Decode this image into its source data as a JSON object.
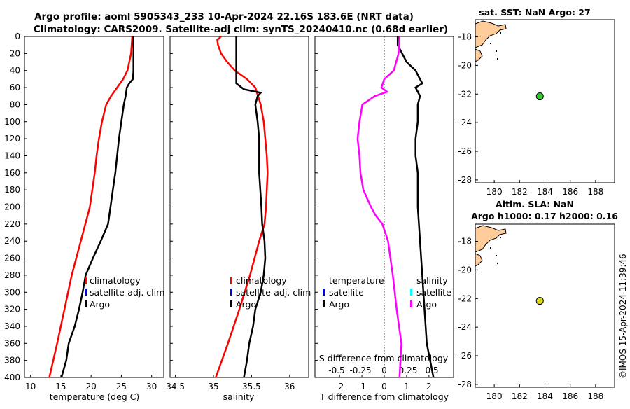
{
  "header": {
    "line1": "Argo profile: aoml 5905343_233 10-Apr-2024 22.16S 183.6E (NRT data)",
    "line2": "Climatology: CARS2009. Satellite-adj clim: synTS_20240410.nc (0.68d earlier)"
  },
  "colors": {
    "climatology": "#ff0000",
    "satellite": "#0000ff",
    "argo": "#000000",
    "sal_satellite": "#00ffff",
    "sal_argo": "#ff00ff",
    "land": "#ffcc99",
    "sst_marker": "#33cc33",
    "sla_marker": "#dddd22"
  },
  "chart_data": [
    {
      "id": "temperature",
      "type": "line",
      "xlabel": "temperature (deg C)",
      "xlim": [
        9,
        32
      ],
      "xticks": [
        10,
        15,
        20,
        25,
        30
      ],
      "ylim": [
        0,
        400
      ],
      "yticks": [
        0,
        20,
        40,
        60,
        80,
        100,
        120,
        140,
        160,
        180,
        200,
        220,
        240,
        260,
        280,
        300,
        320,
        340,
        360,
        380,
        400
      ],
      "legend": [
        "climatology",
        "satellite-adj. clim",
        "Argo"
      ],
      "series": [
        {
          "name": "climatology",
          "depth": [
            0,
            20,
            40,
            50,
            60,
            70,
            80,
            100,
            120,
            140,
            160,
            180,
            200,
            240,
            280,
            320,
            360,
            400
          ],
          "values": [
            26.8,
            26.6,
            26.0,
            25.3,
            24.3,
            23.3,
            22.5,
            21.8,
            21.3,
            20.9,
            20.6,
            20.2,
            19.8,
            18.3,
            16.8,
            15.6,
            14.4,
            13.1
          ]
        },
        {
          "name": "Argo",
          "depth": [
            0,
            20,
            40,
            50,
            55,
            60,
            70,
            80,
            100,
            120,
            140,
            160,
            180,
            200,
            220,
            240,
            260,
            280,
            300,
            320,
            340,
            360,
            380,
            400
          ],
          "values": [
            27.0,
            27.0,
            27.0,
            26.9,
            26.3,
            25.9,
            25.7,
            25.4,
            25.0,
            24.6,
            24.3,
            24.0,
            23.6,
            23.2,
            22.8,
            21.6,
            20.3,
            19.1,
            18.6,
            18.0,
            17.3,
            16.3,
            15.9,
            15.1
          ]
        }
      ]
    },
    {
      "id": "salinity",
      "type": "line",
      "xlabel": "salinity",
      "xlim": [
        34.43,
        36.25
      ],
      "xticks": [
        34.5,
        35,
        35.5,
        36
      ],
      "xtick_labels": [
        "34.5",
        "35",
        "35.5",
        "36"
      ],
      "ylim": [
        0,
        400
      ],
      "legend": [
        "climatology",
        "satellite-adj. clim",
        "Argo"
      ],
      "series": [
        {
          "name": "climatology",
          "depth": [
            0,
            4,
            10,
            20,
            30,
            40,
            50,
            60,
            80,
            100,
            120,
            140,
            160,
            180,
            200,
            220,
            240,
            280,
            320,
            360,
            400
          ],
          "values": [
            35.1,
            35.05,
            35.06,
            35.1,
            35.18,
            35.28,
            35.44,
            35.55,
            35.62,
            35.66,
            35.68,
            35.7,
            35.71,
            35.7,
            35.69,
            35.67,
            35.6,
            35.48,
            35.34,
            35.19,
            35.03
          ]
        },
        {
          "name": "Argo",
          "depth": [
            0,
            40,
            55,
            62,
            66,
            70,
            80,
            100,
            120,
            160,
            200,
            220,
            240,
            260,
            280,
            300,
            320,
            340,
            360,
            380,
            400
          ],
          "values": [
            35.3,
            35.3,
            35.3,
            35.4,
            35.62,
            35.58,
            35.55,
            35.58,
            35.6,
            35.6,
            35.63,
            35.64,
            35.67,
            35.68,
            35.66,
            35.62,
            35.55,
            35.52,
            35.47,
            35.44,
            35.4
          ]
        }
      ]
    },
    {
      "id": "difference",
      "type": "line",
      "xlabel": "T difference from climatology",
      "xlabel2": "S difference from climatology",
      "xlim": [
        -3.1,
        3.1
      ],
      "xticks": [
        -2,
        -1,
        0,
        1,
        2
      ],
      "s_scale": [
        -0.5,
        -0.25,
        0,
        0.25,
        0.5
      ],
      "s_tick_labels": [
        "-0.5",
        "-0.25",
        "0",
        "0.25",
        "0.5"
      ],
      "ylim": [
        0,
        400
      ],
      "legend_left": [
        "temperature",
        "satellite",
        "Argo"
      ],
      "legend_right": [
        "salinity",
        "satellite",
        "Argo"
      ],
      "series": [
        {
          "name": "T difference (Argo)",
          "depth": [
            0,
            10,
            30,
            40,
            50,
            55,
            60,
            70,
            80,
            100,
            120,
            140,
            160,
            180,
            200,
            240,
            280,
            320,
            360,
            400
          ],
          "values": [
            0.6,
            0.6,
            1.0,
            1.4,
            1.6,
            1.7,
            1.4,
            1.6,
            1.5,
            1.5,
            1.4,
            1.4,
            1.5,
            1.5,
            1.5,
            1.6,
            1.7,
            1.8,
            1.9,
            2.2
          ]
        },
        {
          "name": "S difference (Argo)",
          "depth": [
            0,
            20,
            40,
            50,
            60,
            65,
            70,
            80,
            100,
            120,
            140,
            160,
            180,
            200,
            210,
            220,
            240,
            280,
            320,
            360,
            400
          ],
          "values": [
            0.16,
            0.15,
            0.1,
            0.0,
            -0.03,
            0.03,
            -0.1,
            -0.23,
            -0.26,
            -0.28,
            -0.26,
            -0.25,
            -0.22,
            -0.14,
            -0.09,
            -0.02,
            0.04,
            0.09,
            0.13,
            0.18,
            0.16
          ]
        }
      ]
    },
    {
      "id": "sst_map",
      "type": "scatter",
      "title": "sat. SST: NaN Argo: 27",
      "xlim": [
        178.5,
        189.5
      ],
      "xticks": [
        180,
        182,
        184,
        186,
        188
      ],
      "ylim": [
        -28.2,
        -16.8
      ],
      "yticks": [
        -18,
        -20,
        -22,
        -24,
        -26,
        -28
      ],
      "points": [
        {
          "x": 183.6,
          "y": -22.16
        }
      ]
    },
    {
      "id": "sla_map",
      "type": "scatter",
      "title": "Altim. SLA: NaN",
      "subtitle": "Argo h1000: 0.17 h2000: 0.16",
      "xlim": [
        178.5,
        189.5
      ],
      "xticks": [
        180,
        182,
        184,
        186,
        188
      ],
      "ylim": [
        -28.2,
        -16.8
      ],
      "yticks": [
        -18,
        -20,
        -22,
        -24,
        -26,
        -28
      ],
      "points": [
        {
          "x": 183.6,
          "y": -22.16
        }
      ]
    }
  ],
  "watermark": "©IMOS 15-Apr-2024 11:39:46"
}
